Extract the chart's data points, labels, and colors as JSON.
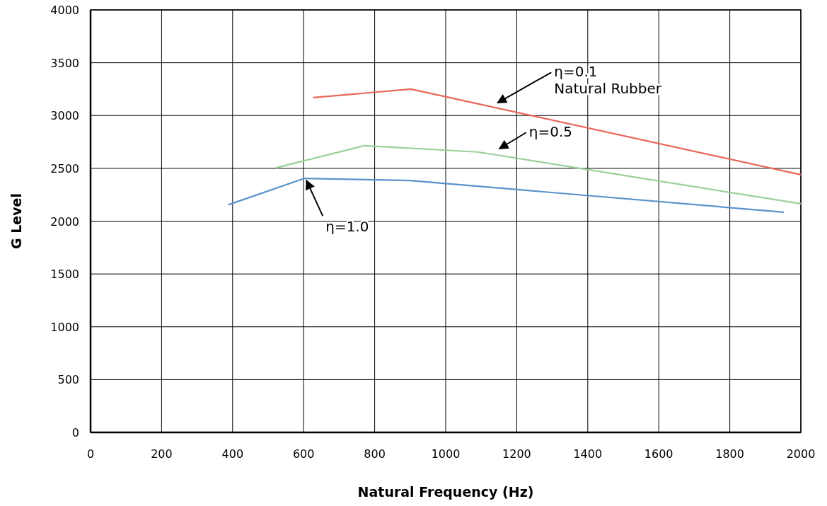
{
  "chart_data": {
    "type": "line",
    "xlabel": "Natural Frequency (Hz)",
    "ylabel": "G Level",
    "xlim": [
      0,
      2000
    ],
    "xticks": [
      0,
      200,
      400,
      600,
      800,
      1000,
      1200,
      1400,
      1600,
      1800,
      2000
    ],
    "ylim": [
      0,
      4000
    ],
    "yticks": [
      0,
      500,
      1000,
      1500,
      2000,
      2500,
      3000,
      3500,
      4000
    ],
    "grid": true,
    "marker": "none",
    "line_style": "solid",
    "series": [
      {
        "color": "#e8675a",
        "x": [
          627,
          902,
          2000
        ],
        "values": [
          3170,
          3250,
          2440
        ]
      },
      {
        "color": "#9bd09a",
        "x": [
          522,
          771,
          1090,
          2000
        ],
        "values": [
          2505,
          2715,
          2655,
          2165
        ]
      },
      {
        "color": "#5b93cc",
        "x": [
          388,
          602,
          900,
          1952
        ],
        "values": [
          2155,
          2405,
          2385,
          2085
        ]
      }
    ],
    "annotations": [
      {
        "text": "η=0.1\nNatural Rubber",
        "x": 1140,
        "y": 3100
      },
      {
        "text": "η=0.5",
        "x": 1145,
        "y": 2665
      },
      {
        "text": "η=1.0",
        "x": 602,
        "y": 2405
      }
    ]
  }
}
